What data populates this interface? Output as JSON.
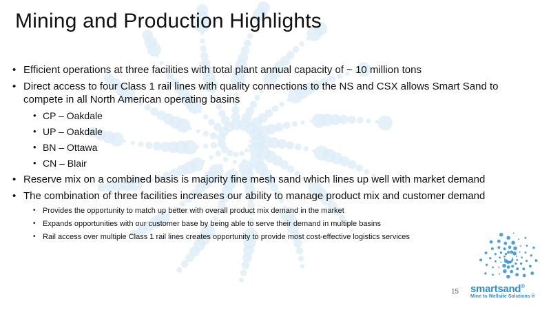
{
  "title": "Mining and Production Highlights",
  "bullets": [
    {
      "text": "Efficient operations at three facilities with total plant annual capacity of ~ 10 million tons"
    },
    {
      "text": "Direct access to four Class 1 rail lines with quality connections to the NS and CSX allows Smart Sand to compete in all North American operating basins",
      "sub": [
        "CP – Oakdale",
        "UP – Oakdale",
        "BN – Ottawa",
        "CN – Blair"
      ]
    },
    {
      "text": "Reserve mix on a combined basis is majority fine mesh sand which lines up well with market demand"
    },
    {
      "text": "The combination of three facilities increases our ability to manage product mix and customer demand",
      "sub": [
        "Provides the opportunity to match up better with overall product mix demand in the market",
        "Expands opportunities with our customer base by being able to serve their demand in multiple basins",
        "Rail access over multiple Class 1 rail lines creates opportunity to provide most cost-effective logistics services"
      ]
    }
  ],
  "bullet_glyph": "•",
  "page_number": "15",
  "logo": {
    "name_part1": "smart",
    "name_part2": "sand",
    "registered": "®",
    "tagline": "Mine to Wellsite Solutions ®"
  },
  "colors": {
    "accent": "#2d8fd6",
    "background_dots": "#dcecf7"
  }
}
